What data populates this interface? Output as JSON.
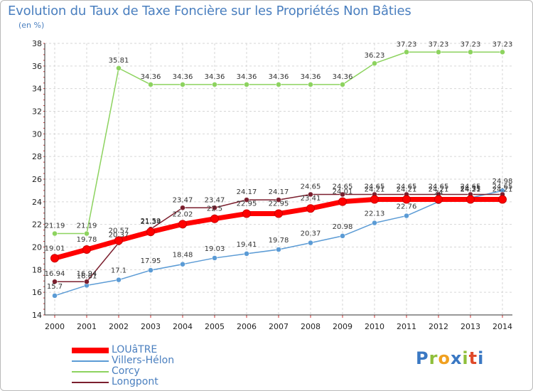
{
  "header": {
    "title": "Evolution du Taux de Taxe Foncière sur les Propriétés Non Bâties",
    "unit": "(en %)"
  },
  "logo": {
    "text": "Proxiti",
    "colors": [
      "#3a78c3",
      "#8fbf3a",
      "#f0a020",
      "#3a78c3",
      "#8fbf3a",
      "#e04a2a",
      "#3a78c3"
    ]
  },
  "chart_data": {
    "type": "line",
    "title": "Evolution du Taux de Taxe Foncière sur les Propriétés Non Bâties",
    "ylabel": "(en %)",
    "xlabel": "",
    "grid": true,
    "ylim": [
      14,
      38
    ],
    "yticks": [
      14,
      16,
      18,
      20,
      22,
      24,
      26,
      28,
      30,
      32,
      34,
      36,
      38
    ],
    "x": [
      "2000",
      "2001",
      "2002",
      "2003",
      "2004",
      "2005",
      "2006",
      "2007",
      "2008",
      "2009",
      "2010",
      "2011",
      "2012",
      "2013",
      "2014"
    ],
    "series": [
      {
        "name": "Corcy",
        "color": "#8dd35f",
        "values": [
          21.19,
          21.19,
          35.81,
          34.36,
          34.36,
          34.36,
          34.36,
          34.36,
          34.36,
          34.36,
          36.23,
          37.23,
          37.23,
          37.23,
          37.23
        ],
        "labels": [
          "21.19",
          "21.19",
          "35.81",
          "34.36",
          "34.36",
          "34.36",
          "34.36",
          "34.36",
          "34.36",
          "34.36",
          "36.23",
          "37.23",
          "37.23",
          "37.23",
          "37.23"
        ]
      },
      {
        "name": "Villers-Hélon",
        "color": "#5b9bd5",
        "values": [
          15.7,
          16.61,
          17.1,
          17.95,
          18.48,
          19.03,
          19.41,
          19.78,
          20.37,
          20.98,
          22.13,
          22.76,
          24.0,
          24.35,
          24.98
        ],
        "labels": [
          "15.7",
          "16.61",
          "17.1",
          "17.95",
          "18.48",
          "19.03",
          "19.41",
          "19.78",
          "20.37",
          "20.98",
          "22.13",
          "22.76",
          "24",
          "24.35",
          "24.98"
        ]
      },
      {
        "name": "Longpont",
        "color": "#7b1f2e",
        "values": [
          16.94,
          16.94,
          20.37,
          21.59,
          23.47,
          23.47,
          24.17,
          24.17,
          24.65,
          24.65,
          24.65,
          24.65,
          24.65,
          24.65,
          24.65
        ],
        "labels": [
          "16.94",
          "16.94",
          "20.37",
          "21.59",
          "23.47",
          "23.47",
          "24.17",
          "24.17",
          "24.65",
          "24.65",
          "24.65",
          "24.65",
          "24.65",
          "24.65",
          "24.65"
        ]
      },
      {
        "name": "LOUâTRE",
        "color": "#ff0000",
        "values": [
          19.01,
          19.78,
          20.57,
          21.34,
          22.02,
          22.5,
          22.95,
          22.95,
          23.41,
          24.01,
          24.21,
          24.21,
          24.21,
          24.21,
          24.21
        ],
        "labels": [
          "19.01",
          "19.78",
          "20.57",
          "21.34",
          "22.02",
          "22.5",
          "22.95",
          "22.95",
          "23.41",
          "24.01",
          "24.21",
          "24.21",
          "24.21",
          "24.21",
          "24.21"
        ]
      }
    ],
    "legend": [
      "LOUâTRE",
      "Villers-Hélon",
      "Corcy",
      "Longpont"
    ]
  }
}
